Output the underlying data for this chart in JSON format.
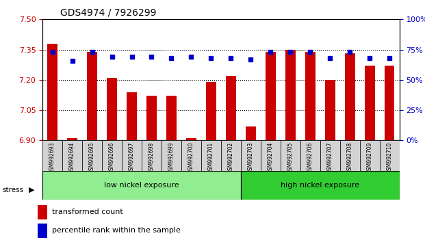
{
  "title": "GDS4974 / 7926299",
  "samples": [
    "GSM992693",
    "GSM992694",
    "GSM992695",
    "GSM992696",
    "GSM992697",
    "GSM992698",
    "GSM992699",
    "GSM992700",
    "GSM992701",
    "GSM992702",
    "GSM992703",
    "GSM992704",
    "GSM992705",
    "GSM992706",
    "GSM992707",
    "GSM992708",
    "GSM992709",
    "GSM992710"
  ],
  "transformed_count": [
    7.38,
    6.91,
    7.34,
    7.21,
    7.14,
    7.12,
    7.12,
    6.91,
    7.19,
    7.22,
    6.97,
    7.34,
    7.35,
    7.34,
    7.2,
    7.33,
    7.27,
    7.27
  ],
  "percentile_rank": [
    73,
    66,
    73,
    69,
    69,
    69,
    68,
    69,
    68,
    68,
    67,
    73,
    73,
    73,
    68,
    73,
    68,
    68
  ],
  "ylim_left": [
    6.9,
    7.5
  ],
  "ylim_right": [
    0,
    100
  ],
  "yticks_left": [
    6.9,
    7.05,
    7.2,
    7.35,
    7.5
  ],
  "yticks_right": [
    0,
    25,
    50,
    75,
    100
  ],
  "ytick_labels_right": [
    "0%",
    "25%",
    "50%",
    "75%",
    "100%"
  ],
  "bar_color": "#cc0000",
  "dot_color": "#0000cc",
  "grid_color": "#000000",
  "bg_color": "#ffffff",
  "low_group_label": "low nickel exposure",
  "high_group_label": "high nickel exposure",
  "low_group_color": "#90ee90",
  "high_group_color": "#32cd32",
  "low_group_indices": [
    0,
    1,
    2,
    3,
    4,
    5,
    6,
    7,
    8,
    9
  ],
  "high_group_indices": [
    10,
    11,
    12,
    13,
    14,
    15,
    16,
    17
  ],
  "stress_label": "stress",
  "legend_bar_label": "transformed count",
  "legend_dot_label": "percentile rank within the sample",
  "sample_bg_color": "#d3d3d3"
}
